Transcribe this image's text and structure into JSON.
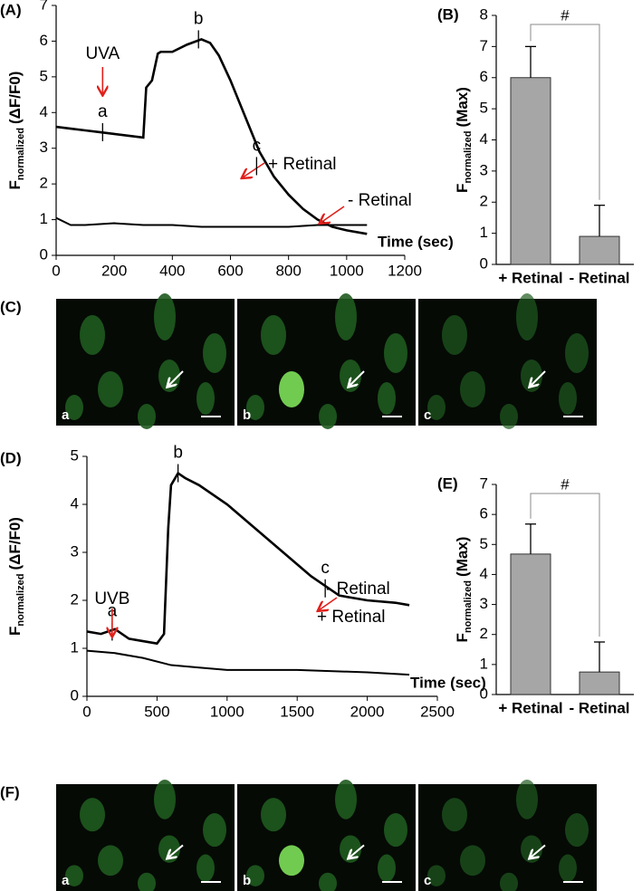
{
  "chart_data": [
    {
      "type": "line",
      "panel": "(A)",
      "xlabel": "Time (sec)",
      "ylabel": {
        "base": "F",
        "subscript": "normalized",
        "suffix": "(ΔF/F0)"
      },
      "xlim": [
        0,
        1200
      ],
      "xticks": [
        0,
        200,
        400,
        600,
        800,
        1000,
        1200
      ],
      "ylim": [
        0,
        7
      ],
      "yticks": [
        0,
        1,
        2,
        3,
        4,
        5,
        6,
        7
      ],
      "stimulus": {
        "label": "UVA",
        "x": 160
      },
      "markers": [
        {
          "label": "a",
          "x": 160,
          "y": 3.45
        },
        {
          "label": "b",
          "x": 490,
          "y": 6.05
        },
        {
          "label": "c",
          "x": 690,
          "y": 2.5
        }
      ],
      "series": [
        {
          "name": "+ Retinal",
          "color": "#000000",
          "x": [
            0,
            50,
            100,
            150,
            200,
            250,
            300,
            310,
            330,
            350,
            360,
            400,
            450,
            500,
            530,
            560,
            600,
            650,
            700,
            750,
            800,
            850,
            900,
            950,
            1000,
            1070
          ],
          "values": [
            3.6,
            3.55,
            3.5,
            3.45,
            3.4,
            3.35,
            3.3,
            4.7,
            4.9,
            5.65,
            5.7,
            5.7,
            5.9,
            6.05,
            5.95,
            5.6,
            4.9,
            3.9,
            2.9,
            2.2,
            1.7,
            1.3,
            1.0,
            0.8,
            0.7,
            0.6
          ]
        },
        {
          "name": "- Retinal",
          "color": "#000000",
          "x": [
            0,
            50,
            100,
            200,
            300,
            400,
            500,
            600,
            700,
            800,
            900,
            1000,
            1070
          ],
          "values": [
            1.05,
            0.85,
            0.85,
            0.9,
            0.85,
            0.85,
            0.8,
            0.8,
            0.8,
            0.8,
            0.85,
            0.85,
            0.85
          ]
        }
      ]
    },
    {
      "type": "bar",
      "panel": "(B)",
      "ylabel": {
        "base": "F",
        "subscript": "normalized",
        "suffix": "(Max)"
      },
      "categories": [
        "+ Retinal",
        "- Retinal"
      ],
      "values": [
        6.0,
        0.9
      ],
      "errors": [
        1.0,
        1.0
      ],
      "color": "#a6a6a6",
      "ylim": [
        0,
        8
      ],
      "yticks": [
        0,
        1,
        2,
        3,
        4,
        5,
        6,
        7,
        8
      ],
      "significance": "#"
    },
    {
      "type": "line",
      "panel": "(D)",
      "xlabel": "Time (sec)",
      "ylabel": {
        "base": "F",
        "subscript": "normalized",
        "suffix": "(ΔF/F0)"
      },
      "xlim": [
        0,
        2500
      ],
      "xticks": [
        0,
        500,
        1000,
        1500,
        2000,
        2500
      ],
      "ylim": [
        0,
        5
      ],
      "yticks": [
        0,
        1,
        2,
        3,
        4,
        5
      ],
      "stimulus": {
        "label": "UVB",
        "x": 180
      },
      "markers": [
        {
          "label": "a",
          "x": 180,
          "y": 1.35
        },
        {
          "label": "b",
          "x": 650,
          "y": 4.65
        },
        {
          "label": "c",
          "x": 1700,
          "y": 2.25
        }
      ],
      "series": [
        {
          "name": "+ Retinal",
          "color": "#000000",
          "x": [
            0,
            100,
            200,
            300,
            400,
            500,
            550,
            580,
            600,
            650,
            700,
            800,
            1000,
            1200,
            1400,
            1600,
            1700,
            1800,
            2000,
            2200,
            2300
          ],
          "values": [
            1.35,
            1.3,
            1.4,
            1.2,
            1.15,
            1.1,
            1.3,
            3.5,
            4.4,
            4.65,
            4.55,
            4.4,
            4.0,
            3.5,
            3.0,
            2.5,
            2.3,
            2.1,
            2.0,
            1.95,
            1.9
          ]
        },
        {
          "name": "- Retinal",
          "color": "#000000",
          "x": [
            0,
            200,
            400,
            600,
            800,
            1000,
            1500,
            2000,
            2300
          ],
          "values": [
            0.95,
            0.9,
            0.8,
            0.65,
            0.6,
            0.55,
            0.55,
            0.5,
            0.45
          ]
        }
      ]
    },
    {
      "type": "bar",
      "panel": "(E)",
      "ylabel": {
        "base": "F",
        "subscript": "normalized",
        "suffix": "(Max)"
      },
      "categories": [
        "+ Retinal",
        "- Retinal"
      ],
      "values": [
        4.68,
        0.75
      ],
      "errors": [
        1.0,
        1.0
      ],
      "color": "#a6a6a6",
      "ylim": [
        0,
        7
      ],
      "yticks": [
        0,
        1,
        2,
        3,
        4,
        5,
        6,
        7
      ],
      "significance": "#"
    }
  ],
  "image_panels": [
    {
      "panel": "(C)",
      "labels": [
        "a",
        "b",
        "c"
      ]
    },
    {
      "panel": "(F)",
      "labels": [
        "a",
        "b",
        "c"
      ]
    }
  ]
}
